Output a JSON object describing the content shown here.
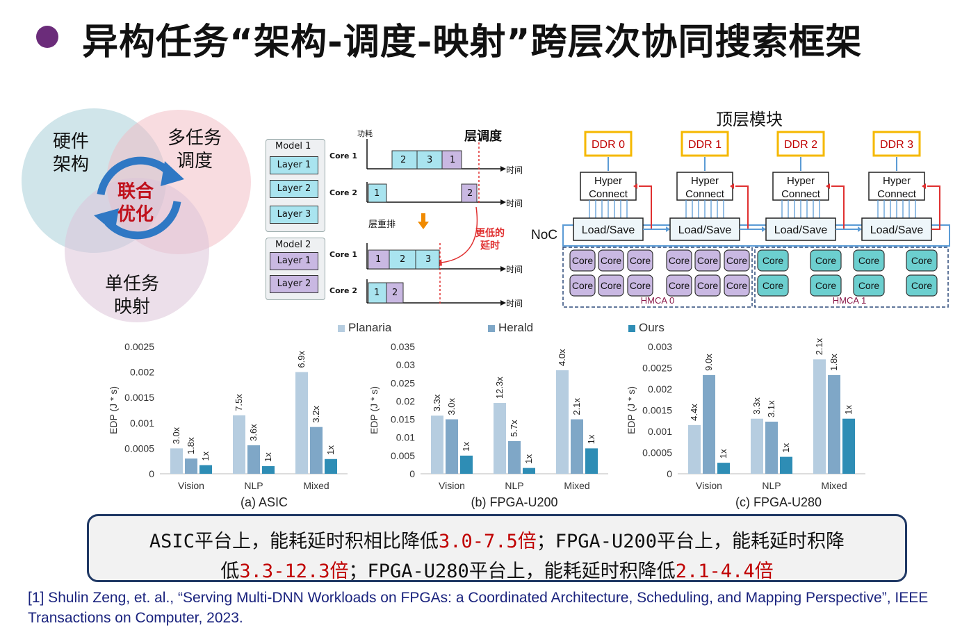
{
  "title": "异构任务“架构-调度-映射”跨层次协同搜索框架",
  "venn": {
    "hardware": [
      "硬件",
      "架构"
    ],
    "multi_task": [
      "多任务",
      "调度"
    ],
    "single_task": [
      "单任务",
      "映射"
    ],
    "center": [
      "联合",
      "优化"
    ]
  },
  "schedule": {
    "power_label": "功耗",
    "layer_sched": "层调度",
    "reorder": "层重排",
    "lower_latency": [
      "更低的",
      "延时"
    ],
    "time": "时间",
    "model1": "Model 1",
    "model1_layers": [
      "Layer 1",
      "Layer 2",
      "Layer 3"
    ],
    "model2": "Model 2",
    "model2_layers": [
      "Layer 1",
      "Layer 2"
    ],
    "core1": "Core 1",
    "core2": "Core 2",
    "top_core1_blocks": [
      "2",
      "3",
      "1"
    ],
    "top_core2_blocks": [
      "1",
      "2"
    ],
    "bot_core1_blocks": [
      "1",
      "2",
      "3"
    ],
    "bot_core2_blocks": [
      "1",
      "2"
    ]
  },
  "arch": {
    "top_module": "顶层模块",
    "noc": "NoC",
    "ddr": [
      "DDR 0",
      "DDR 1",
      "DDR 2",
      "DDR 3"
    ],
    "hyper": [
      "Hyper",
      "Connect"
    ],
    "load_save": "Load/Save",
    "core": "Core",
    "hmca0": "HMCA 0",
    "hmca1": "HMCA 1",
    "colors": {
      "purple_core": "#c9b8e2",
      "teal_core": "#6ccfcf",
      "ddr": "#f5b800",
      "arrow_red": "#e03030",
      "arrow_blue": "#5b9bd5"
    }
  },
  "legend": [
    "Planaria",
    "Herald",
    "Ours"
  ],
  "series_colors": [
    "#b6cde0",
    "#7fa7c7",
    "#2e8db5"
  ],
  "chart_data": [
    {
      "type": "bar",
      "title": "(a) ASIC",
      "ylabel": "EDP (J * s)",
      "categories": [
        "Vision",
        "NLP",
        "Mixed"
      ],
      "ylim": [
        0,
        0.0025
      ],
      "yticks": [
        "0",
        "0.0005",
        "0.001",
        "0.0015",
        "0.002",
        "0.0025"
      ],
      "series": [
        {
          "name": "Planaria",
          "values": [
            0.0005,
            0.00115,
            0.002
          ],
          "labels": [
            "3.0x",
            "7.5x",
            "6.9x"
          ]
        },
        {
          "name": "Herald",
          "values": [
            0.0003,
            0.00056,
            0.00092
          ],
          "labels": [
            "1.8x",
            "3.6x",
            "3.2x"
          ]
        },
        {
          "name": "Ours",
          "values": [
            0.00017,
            0.00015,
            0.00029
          ],
          "labels": [
            "1x",
            "1x",
            "1x"
          ]
        }
      ]
    },
    {
      "type": "bar",
      "title": "(b) FPGA-U200",
      "ylabel": "EDP (J * s)",
      "categories": [
        "Vision",
        "NLP",
        "Mixed"
      ],
      "ylim": [
        0,
        0.035
      ],
      "yticks": [
        "0",
        "0.005",
        "0.01",
        "0.015",
        "0.02",
        "0.025",
        "0.03",
        "0.035"
      ],
      "series": [
        {
          "name": "Planaria",
          "values": [
            0.016,
            0.0195,
            0.0285
          ],
          "labels": [
            "3.3x",
            "12.3x",
            "4.0x"
          ]
        },
        {
          "name": "Herald",
          "values": [
            0.015,
            0.009,
            0.015
          ],
          "labels": [
            "3.0x",
            "5.7x",
            "2.1x"
          ]
        },
        {
          "name": "Ours",
          "values": [
            0.005,
            0.0016,
            0.007
          ],
          "labels": [
            "1x",
            "1x",
            "1x"
          ]
        }
      ]
    },
    {
      "type": "bar",
      "title": "(c) FPGA-U280",
      "ylabel": "EDP (J * s)",
      "categories": [
        "Vision",
        "NLP",
        "Mixed"
      ],
      "ylim": [
        0,
        0.003
      ],
      "yticks": [
        "0",
        "0.0005",
        "0.001",
        "0.0015",
        "0.002",
        "0.0025",
        "0.003"
      ],
      "series": [
        {
          "name": "Planaria",
          "values": [
            0.00115,
            0.0013,
            0.0027
          ],
          "labels": [
            "4.4x",
            "3.3x",
            "2.1x"
          ]
        },
        {
          "name": "Herald",
          "values": [
            0.00233,
            0.00123,
            0.00233
          ],
          "labels": [
            "9.0x",
            "3.1x",
            "1.8x"
          ]
        },
        {
          "name": "Ours",
          "values": [
            0.00026,
            0.0004,
            0.0013
          ],
          "labels": [
            "1x",
            "1x",
            "1x"
          ]
        }
      ]
    }
  ],
  "summary": {
    "l1_a": "ASIC平台上，能耗延时积相比降低",
    "l1_b": "3.0-7.5倍",
    "l1_c": "；FPGA-U200平台上，能耗延时积降",
    "l2_a": "低",
    "l2_b": "3.3-12.3倍",
    "l2_c": "；FPGA-U280平台上，能耗延时积降低",
    "l2_d": "2.1-4.4倍"
  },
  "reference": "[1] Shulin Zeng, et. al., “Serving Multi-DNN Workloads on FPGAs: a Coordinated Architecture, Scheduling, and Mapping Perspective”, IEEE Transactions on Computer, 2023."
}
